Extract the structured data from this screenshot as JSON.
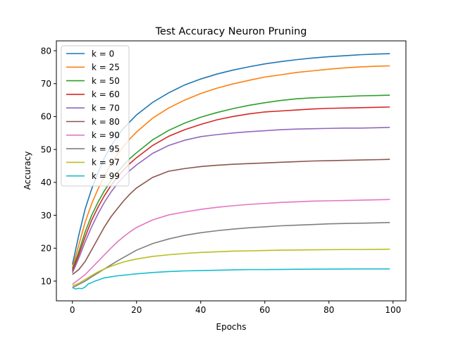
{
  "chart_data": {
    "type": "line",
    "title": "Test Accuracy Neuron Pruning",
    "xlabel": "Epochs",
    "ylabel": "Accuracy",
    "xlim": [
      -5,
      104
    ],
    "ylim": [
      4,
      83
    ],
    "xticks": [
      0,
      20,
      40,
      60,
      80,
      100
    ],
    "yticks": [
      10,
      20,
      30,
      40,
      50,
      60,
      70,
      80
    ],
    "grid": false,
    "legend_placement": "top-left",
    "series": [
      {
        "name": "k = 0",
        "color": "#1f77b4",
        "points": [
          [
            0,
            15
          ],
          [
            2,
            24
          ],
          [
            4,
            32
          ],
          [
            6,
            38
          ],
          [
            8,
            43
          ],
          [
            10,
            47.5
          ],
          [
            12,
            51
          ],
          [
            14,
            54
          ],
          [
            16,
            56.5
          ],
          [
            18,
            58.5
          ],
          [
            20,
            60.5
          ],
          [
            25,
            64.3
          ],
          [
            30,
            67.2
          ],
          [
            35,
            69.6
          ],
          [
            40,
            71.4
          ],
          [
            45,
            72.9
          ],
          [
            50,
            74.1
          ],
          [
            55,
            75.1
          ],
          [
            60,
            76.0
          ],
          [
            65,
            76.7
          ],
          [
            70,
            77.3
          ],
          [
            75,
            77.8
          ],
          [
            80,
            78.2
          ],
          [
            85,
            78.5
          ],
          [
            90,
            78.8
          ],
          [
            95,
            79.0
          ],
          [
            99,
            79.1
          ]
        ]
      },
      {
        "name": "k = 25",
        "color": "#ff7f0e",
        "points": [
          [
            0,
            14
          ],
          [
            2,
            21
          ],
          [
            4,
            28
          ],
          [
            6,
            33.5
          ],
          [
            8,
            38
          ],
          [
            10,
            42
          ],
          [
            12,
            45.5
          ],
          [
            14,
            48.5
          ],
          [
            16,
            51
          ],
          [
            18,
            53.3
          ],
          [
            20,
            55.3
          ],
          [
            25,
            59.5
          ],
          [
            30,
            62.6
          ],
          [
            35,
            65
          ],
          [
            40,
            67
          ],
          [
            45,
            68.6
          ],
          [
            50,
            69.9
          ],
          [
            55,
            71
          ],
          [
            60,
            72
          ],
          [
            65,
            72.7
          ],
          [
            70,
            73.4
          ],
          [
            75,
            73.9
          ],
          [
            80,
            74.4
          ],
          [
            85,
            74.8
          ],
          [
            90,
            75.1
          ],
          [
            95,
            75.3
          ],
          [
            99,
            75.4
          ]
        ]
      },
      {
        "name": "k = 50",
        "color": "#2ca02c",
        "points": [
          [
            0,
            13.5
          ],
          [
            2,
            19
          ],
          [
            4,
            25
          ],
          [
            6,
            30
          ],
          [
            8,
            34
          ],
          [
            10,
            37.5
          ],
          [
            12,
            40.5
          ],
          [
            14,
            43
          ],
          [
            16,
            45.3
          ],
          [
            18,
            47.3
          ],
          [
            20,
            49
          ],
          [
            25,
            52.9
          ],
          [
            30,
            55.8
          ],
          [
            35,
            58
          ],
          [
            40,
            59.8
          ],
          [
            45,
            61.2
          ],
          [
            50,
            62.4
          ],
          [
            55,
            63.4
          ],
          [
            60,
            64.2
          ],
          [
            65,
            64.9
          ],
          [
            70,
            65.4
          ],
          [
            75,
            65.7
          ],
          [
            80,
            65.9
          ],
          [
            85,
            66.1
          ],
          [
            90,
            66.3
          ],
          [
            95,
            66.4
          ],
          [
            99,
            66.5
          ]
        ]
      },
      {
        "name": "k = 60",
        "color": "#d62728",
        "points": [
          [
            0,
            13
          ],
          [
            2,
            18
          ],
          [
            4,
            23.5
          ],
          [
            6,
            28.5
          ],
          [
            8,
            32.5
          ],
          [
            10,
            36
          ],
          [
            12,
            39
          ],
          [
            14,
            41.6
          ],
          [
            16,
            43.8
          ],
          [
            18,
            45.8
          ],
          [
            20,
            47.5
          ],
          [
            25,
            51.2
          ],
          [
            30,
            54
          ],
          [
            35,
            56
          ],
          [
            40,
            57.6
          ],
          [
            45,
            59
          ],
          [
            50,
            60
          ],
          [
            55,
            60.8
          ],
          [
            60,
            61.4
          ],
          [
            65,
            61.7
          ],
          [
            70,
            62
          ],
          [
            75,
            62.3
          ],
          [
            80,
            62.5
          ],
          [
            85,
            62.6
          ],
          [
            90,
            62.7
          ],
          [
            95,
            62.8
          ],
          [
            99,
            62.9
          ]
        ]
      },
      {
        "name": "k = 70",
        "color": "#9467bd",
        "points": [
          [
            0,
            12.5
          ],
          [
            2,
            17
          ],
          [
            4,
            22
          ],
          [
            6,
            26.5
          ],
          [
            8,
            30.5
          ],
          [
            10,
            34
          ],
          [
            12,
            37
          ],
          [
            14,
            39.6
          ],
          [
            16,
            41.8
          ],
          [
            18,
            43.7
          ],
          [
            20,
            45.3
          ],
          [
            25,
            48.8
          ],
          [
            30,
            51.2
          ],
          [
            35,
            52.8
          ],
          [
            40,
            53.9
          ],
          [
            45,
            54.5
          ],
          [
            50,
            55
          ],
          [
            55,
            55.4
          ],
          [
            60,
            55.7
          ],
          [
            65,
            56
          ],
          [
            70,
            56.2
          ],
          [
            75,
            56.3
          ],
          [
            80,
            56.4
          ],
          [
            85,
            56.5
          ],
          [
            90,
            56.5
          ],
          [
            95,
            56.6
          ],
          [
            99,
            56.7
          ]
        ]
      },
      {
        "name": "k = 80",
        "color": "#8c564b",
        "points": [
          [
            0,
            12
          ],
          [
            2,
            13.5
          ],
          [
            4,
            16
          ],
          [
            6,
            19.5
          ],
          [
            8,
            23
          ],
          [
            10,
            26.5
          ],
          [
            12,
            29.5
          ],
          [
            14,
            32
          ],
          [
            16,
            34.4
          ],
          [
            18,
            36.5
          ],
          [
            20,
            38.3
          ],
          [
            25,
            41.5
          ],
          [
            30,
            43.4
          ],
          [
            35,
            44.2
          ],
          [
            40,
            44.8
          ],
          [
            45,
            45.2
          ],
          [
            50,
            45.5
          ],
          [
            55,
            45.7
          ],
          [
            60,
            45.9
          ],
          [
            65,
            46.1
          ],
          [
            70,
            46.3
          ],
          [
            75,
            46.5
          ],
          [
            80,
            46.6
          ],
          [
            85,
            46.7
          ],
          [
            90,
            46.8
          ],
          [
            95,
            46.9
          ],
          [
            99,
            47
          ]
        ]
      },
      {
        "name": "k = 90",
        "color": "#e377c2",
        "points": [
          [
            0,
            9
          ],
          [
            2,
            10.5
          ],
          [
            4,
            12
          ],
          [
            6,
            14
          ],
          [
            8,
            16
          ],
          [
            10,
            18
          ],
          [
            12,
            20
          ],
          [
            14,
            21.9
          ],
          [
            16,
            23.5
          ],
          [
            18,
            25
          ],
          [
            20,
            26.3
          ],
          [
            25,
            28.6
          ],
          [
            30,
            30.1
          ],
          [
            35,
            31
          ],
          [
            40,
            31.8
          ],
          [
            45,
            32.4
          ],
          [
            50,
            32.9
          ],
          [
            55,
            33.3
          ],
          [
            60,
            33.6
          ],
          [
            65,
            33.9
          ],
          [
            70,
            34.1
          ],
          [
            75,
            34.3
          ],
          [
            80,
            34.4
          ],
          [
            85,
            34.5
          ],
          [
            90,
            34.6
          ],
          [
            95,
            34.7
          ],
          [
            99,
            34.8
          ]
        ]
      },
      {
        "name": "k = 95",
        "color": "#7f7f7f",
        "points": [
          [
            0,
            8
          ],
          [
            2,
            9
          ],
          [
            4,
            10
          ],
          [
            6,
            11.3
          ],
          [
            8,
            12.5
          ],
          [
            10,
            13.7
          ],
          [
            12,
            14.9
          ],
          [
            14,
            16.1
          ],
          [
            16,
            17.2
          ],
          [
            18,
            18.3
          ],
          [
            20,
            19.4
          ],
          [
            25,
            21.4
          ],
          [
            30,
            22.8
          ],
          [
            35,
            23.9
          ],
          [
            40,
            24.7
          ],
          [
            45,
            25.3
          ],
          [
            50,
            25.8
          ],
          [
            55,
            26.2
          ],
          [
            60,
            26.5
          ],
          [
            65,
            26.8
          ],
          [
            70,
            27
          ],
          [
            75,
            27.2
          ],
          [
            80,
            27.4
          ],
          [
            85,
            27.5
          ],
          [
            90,
            27.6
          ],
          [
            95,
            27.7
          ],
          [
            99,
            27.8
          ]
        ]
      },
      {
        "name": "k = 97",
        "color": "#bcbd22",
        "points": [
          [
            0,
            8.5
          ],
          [
            2,
            9.3
          ],
          [
            4,
            10.5
          ],
          [
            6,
            11.7
          ],
          [
            8,
            12.8
          ],
          [
            10,
            13.7
          ],
          [
            12,
            14.5
          ],
          [
            14,
            15.2
          ],
          [
            16,
            15.8
          ],
          [
            18,
            16.3
          ],
          [
            20,
            16.7
          ],
          [
            25,
            17.5
          ],
          [
            30,
            18
          ],
          [
            35,
            18.4
          ],
          [
            40,
            18.7
          ],
          [
            45,
            18.9
          ],
          [
            50,
            19.1
          ],
          [
            55,
            19.2
          ],
          [
            60,
            19.3
          ],
          [
            65,
            19.4
          ],
          [
            70,
            19.45
          ],
          [
            75,
            19.5
          ],
          [
            80,
            19.55
          ],
          [
            85,
            19.6
          ],
          [
            90,
            19.6
          ],
          [
            95,
            19.65
          ],
          [
            99,
            19.7
          ]
        ]
      },
      {
        "name": "k = 99",
        "color": "#17becf",
        "points": [
          [
            0,
            8
          ],
          [
            1,
            7.6
          ],
          [
            2,
            7.8
          ],
          [
            3,
            7.7
          ],
          [
            4,
            8.2
          ],
          [
            5,
            9.2
          ],
          [
            6,
            9.5
          ],
          [
            7,
            10
          ],
          [
            8,
            10.3
          ],
          [
            9,
            10.7
          ],
          [
            10,
            11
          ],
          [
            12,
            11.3
          ],
          [
            14,
            11.6
          ],
          [
            16,
            11.8
          ],
          [
            18,
            12
          ],
          [
            20,
            12.2
          ],
          [
            25,
            12.6
          ],
          [
            30,
            12.9
          ],
          [
            35,
            13.1
          ],
          [
            40,
            13.2
          ],
          [
            45,
            13.3
          ],
          [
            50,
            13.4
          ],
          [
            55,
            13.5
          ],
          [
            60,
            13.5
          ],
          [
            65,
            13.55
          ],
          [
            70,
            13.6
          ],
          [
            80,
            13.65
          ],
          [
            90,
            13.7
          ],
          [
            99,
            13.7
          ]
        ]
      }
    ]
  }
}
